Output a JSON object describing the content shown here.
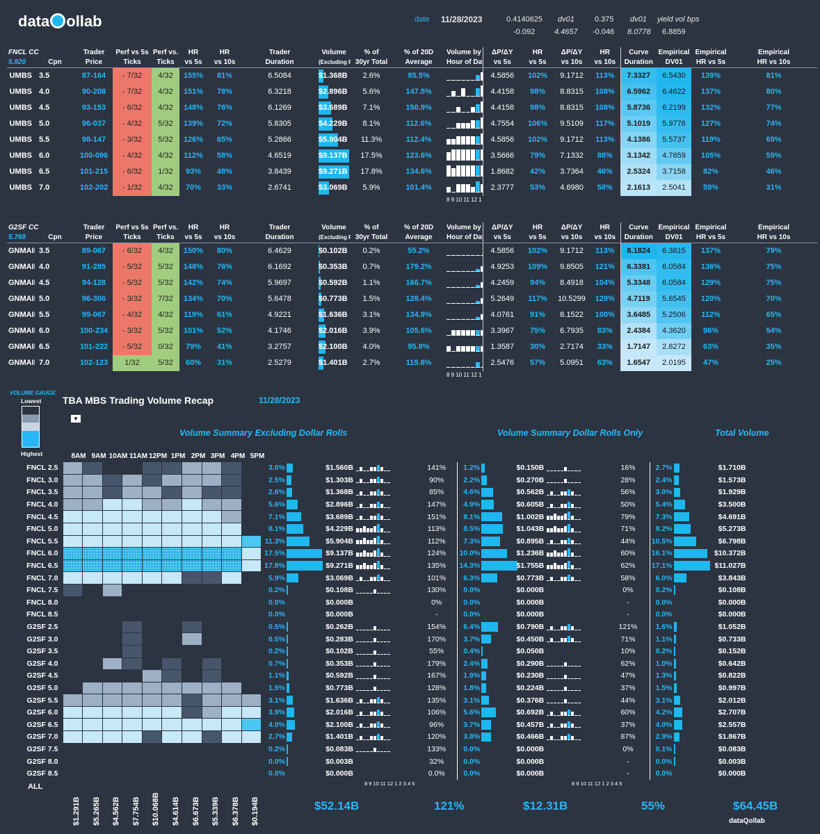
{
  "header": {
    "logo": "dataQollab",
    "date_label": "date",
    "date": "11/28/2023",
    "v1": "0.4140625",
    "v2": "-0.092",
    "dv01_label": "dv01",
    "dv01_a": "4.4657",
    "v3": "0.375",
    "v4": "-0.046",
    "dv01_label2": "dv01",
    "dv01_b": "8.0778",
    "yv_label": "yield vol bps",
    "yv": "6.8859"
  },
  "fncl": {
    "cc": "FNCL CC",
    "cc_val": "5.920",
    "cols": [
      "Cpn",
      "Trader Price",
      "Perf vs 5s Ticks",
      "Perf vs. 10s Ticks",
      "HR vs 5s",
      "HR vs 10s",
      "Trader Duration",
      "Volume (Excluding Rolls)",
      "% of 30yr Total",
      "% of 20D Average",
      "Volume by Hour of Day",
      "ΔP/ΔY vs 5s",
      "HR vs 5s",
      "ΔP/ΔY vs 10s",
      "HR vs 10s",
      "Curve Duration",
      "Empirical DV01",
      "Empirical HR vs 5s",
      "Empirical HR vs 10s"
    ],
    "rows": [
      [
        "UMBS",
        "3.5",
        "87-164",
        "- 7/32",
        "4/32",
        "155%",
        "81%",
        "6.5084",
        "$1.368B",
        "2.6%",
        "85.5%",
        "4.5856",
        "102%",
        "9.1712",
        "113%",
        "7.3327",
        "6.5430",
        "139%",
        "81%"
      ],
      [
        "UMBS",
        "4.0",
        "90-208",
        "- 7/32",
        "4/32",
        "151%",
        "78%",
        "6.3218",
        "$2.896B",
        "5.6%",
        "147.5%",
        "4.4158",
        "98%",
        "8.8315",
        "108%",
        "6.5962",
        "6.4622",
        "137%",
        "80%"
      ],
      [
        "UMBS",
        "4.5",
        "93-153",
        "- 6/32",
        "4/32",
        "148%",
        "76%",
        "6.1269",
        "$3.689B",
        "7.1%",
        "150.9%",
        "4.4158",
        "98%",
        "8.8315",
        "108%",
        "5.8736",
        "6.2199",
        "132%",
        "77%"
      ],
      [
        "UMBS",
        "5.0",
        "96-037",
        "- 4/32",
        "5/32",
        "139%",
        "72%",
        "5.8305",
        "$4.229B",
        "8.1%",
        "112.6%",
        "4.7554",
        "106%",
        "9.5109",
        "117%",
        "5.1019",
        "5.9776",
        "127%",
        "74%"
      ],
      [
        "UMBS",
        "5.5",
        "98-147",
        "- 3/32",
        "5/32",
        "126%",
        "65%",
        "5.2866",
        "$5.904B",
        "11.3%",
        "112.4%",
        "4.5856",
        "102%",
        "9.1712",
        "113%",
        "4.1386",
        "5.5737",
        "119%",
        "69%"
      ],
      [
        "UMBS",
        "6.0",
        "100-096",
        "- 4/32",
        "4/32",
        "112%",
        "58%",
        "4.6519",
        "$9.137B",
        "17.5%",
        "123.6%",
        "3.5666",
        "79%",
        "7.1332",
        "88%",
        "3.1342",
        "4.7659",
        "105%",
        "59%"
      ],
      [
        "UMBS",
        "6.5",
        "101-215",
        "- 6/32",
        "1/32",
        "93%",
        "48%",
        "3.8439",
        "$9.271B",
        "17.8%",
        "134.6%",
        "1.8682",
        "42%",
        "3.7364",
        "46%",
        "2.5324",
        "3.7158",
        "82%",
        "46%"
      ],
      [
        "UMBS",
        "7.0",
        "102-202",
        "- 1/32",
        "4/32",
        "70%",
        "33%",
        "2.6741",
        "$3.069B",
        "5.9%",
        "101.4%",
        "2.3777",
        "53%",
        "4.6980",
        "58%",
        "2.1613",
        "2.5041",
        "59%",
        "31%"
      ]
    ],
    "vol": [
      1.368,
      2.896,
      3.689,
      4.229,
      5.904,
      9.137,
      9.271,
      3.069
    ],
    "axis": "8 9 10 11 12 1 2 3 4 5"
  },
  "g2sf": {
    "cc": "G2SF CC",
    "cc_val": "5.768",
    "rows": [
      [
        "GNMAII",
        "3.5",
        "89-067",
        "- 6/32",
        "4/32",
        "150%",
        "80%",
        "6.4629",
        "$0.102B",
        "0.2%",
        "55.2%",
        "4.5856",
        "102%",
        "9.1712",
        "113%",
        "8.1824",
        "6.3815",
        "137%",
        "79%"
      ],
      [
        "GNMAII",
        "4.0",
        "91-285",
        "- 5/32",
        "5/32",
        "148%",
        "76%",
        "6.1692",
        "$0.353B",
        "0.7%",
        "179.2%",
        "4.9253",
        "109%",
        "9.8505",
        "121%",
        "6.3381",
        "6.0584",
        "136%",
        "75%"
      ],
      [
        "GNMAII",
        "4.5",
        "94-128",
        "- 5/32",
        "5/32",
        "142%",
        "74%",
        "5.9697",
        "$0.592B",
        "1.1%",
        "166.7%",
        "4.2459",
        "94%",
        "8.4918",
        "104%",
        "5.3348",
        "6.0584",
        "129%",
        "75%"
      ],
      [
        "GNMAII",
        "5.0",
        "96-306",
        "- 3/32",
        "7/32",
        "134%",
        "70%",
        "5.6478",
        "$0.773B",
        "1.5%",
        "128.4%",
        "5.2649",
        "117%",
        "10.5299",
        "129%",
        "4.7119",
        "5.6545",
        "120%",
        "70%"
      ],
      [
        "GNMAII",
        "5.5",
        "99-067",
        "- 4/32",
        "4/32",
        "119%",
        "61%",
        "4.9221",
        "$1.636B",
        "3.1%",
        "134.9%",
        "4.0761",
        "91%",
        "8.1522",
        "100%",
        "3.6485",
        "5.2506",
        "112%",
        "65%"
      ],
      [
        "GNMAII",
        "6.0",
        "100-234",
        "- 3/32",
        "5/32",
        "101%",
        "52%",
        "4.1746",
        "$2.016B",
        "3.9%",
        "105.6%",
        "3.3967",
        "75%",
        "6.7935",
        "83%",
        "2.4384",
        "4.3620",
        "96%",
        "54%"
      ],
      [
        "GNMAII",
        "6.5",
        "101-222",
        "- 5/32",
        "0/32",
        "79%",
        "41%",
        "3.2757",
        "$2.100B",
        "4.0%",
        "95.8%",
        "1.3587",
        "30%",
        "2.7174",
        "33%",
        "1.7147",
        "2.8272",
        "63%",
        "35%"
      ],
      [
        "GNMAII",
        "7.0",
        "102-123",
        "1/32",
        "5/32",
        "60%",
        "31%",
        "2.5279",
        "$1.401B",
        "2.7%",
        "119.8%",
        "2.5476",
        "57%",
        "5.0951",
        "63%",
        "1.6547",
        "2.0195",
        "47%",
        "25%"
      ]
    ],
    "vol": [
      0.102,
      0.353,
      0.592,
      0.773,
      1.636,
      2.016,
      2.1,
      1.401
    ]
  },
  "recap": {
    "gauge": "VOLUME GAUGE",
    "lowest": "Lowest",
    "highest": "Highest",
    "title": "TBA MBS Trading Volume Recap",
    "date": "11/28/2023",
    "sec1": "Volume Summary Excluding Dollar Rolls",
    "sec2": "Volume Summary Dollar Rolls Only",
    "sec3": "Total Volume",
    "h_pct": "% of 30y Volume",
    "h_tot": "Total Volume",
    "h_hour": "Volume by Hour",
    "h_avg": "% of 20d Average",
    "hours": [
      "8AM",
      "9AM",
      "10AM",
      "11AM",
      "12PM",
      "1PM",
      "2PM",
      "3PM",
      "4PM",
      "5PM"
    ],
    "rows": [
      [
        "FNCL 2.5",
        "3.0%",
        "$1.560B",
        "141%",
        "1.2%",
        "$0.150B",
        "16%",
        "2.7%",
        "$1.710B"
      ],
      [
        "FNCL 3.0",
        "2.5%",
        "$1.303B",
        "90%",
        "2.2%",
        "$0.270B",
        "28%",
        "2.4%",
        "$1.573B"
      ],
      [
        "FNCL 3.5",
        "2.6%",
        "$1.368B",
        "85%",
        "4.6%",
        "$0.562B",
        "56%",
        "3.0%",
        "$1.929B"
      ],
      [
        "FNCL 4.0",
        "5.6%",
        "$2.896B",
        "147%",
        "4.9%",
        "$0.605B",
        "50%",
        "5.4%",
        "$3.500B"
      ],
      [
        "FNCL 4.5",
        "7.1%",
        "$3.689B",
        "151%",
        "8.1%",
        "$1.002B",
        "79%",
        "7.3%",
        "$4.691B"
      ],
      [
        "FNCL 5.0",
        "8.1%",
        "$4.229B",
        "113%",
        "8.5%",
        "$1.043B",
        "71%",
        "8.2%",
        "$5.273B"
      ],
      [
        "FNCL 5.5",
        "11.3%",
        "$5.904B",
        "112%",
        "7.3%",
        "$0.895B",
        "44%",
        "10.5%",
        "$6.798B"
      ],
      [
        "FNCL 6.0",
        "17.5%",
        "$9.137B",
        "124%",
        "10.0%",
        "$1.236B",
        "60%",
        "16.1%",
        "$10.372B"
      ],
      [
        "FNCL 6.5",
        "17.8%",
        "$9.271B",
        "135%",
        "14.3%",
        "$1.755B",
        "62%",
        "17.1%",
        "$11.027B"
      ],
      [
        "FNCL 7.0",
        "5.9%",
        "$3.069B",
        "101%",
        "6.3%",
        "$0.773B",
        "58%",
        "6.0%",
        "$3.843B"
      ],
      [
        "FNCL 7.5",
        "0.2%",
        "$0.108B",
        "130%",
        "0.0%",
        "$0.000B",
        "0%",
        "0.2%",
        "$0.108B"
      ],
      [
        "FNCL 8.0",
        "0.0%",
        "$0.000B",
        "0%",
        "0.0%",
        "$0.000B",
        "-",
        "0.0%",
        "$0.000B"
      ],
      [
        "FNCL 8.5",
        "0.0%",
        "$0.000B",
        "-",
        "0.0%",
        "$0.000B",
        "-",
        "0.0%",
        "$0.000B"
      ],
      [
        "G2SF 2.5",
        "0.5%",
        "$0.262B",
        "154%",
        "6.4%",
        "$0.790B",
        "121%",
        "1.6%",
        "$1.052B"
      ],
      [
        "G2SF 3.0",
        "0.5%",
        "$0.283B",
        "170%",
        "3.7%",
        "$0.450B",
        "71%",
        "1.1%",
        "$0.733B"
      ],
      [
        "G2SF 3.5",
        "0.2%",
        "$0.102B",
        "55%",
        "0.4%",
        "$0.050B",
        "10%",
        "0.2%",
        "$0.152B"
      ],
      [
        "G2SF 4.0",
        "0.7%",
        "$0.353B",
        "179%",
        "2.4%",
        "$0.290B",
        "62%",
        "1.0%",
        "$0.642B"
      ],
      [
        "G2SF 4.5",
        "1.1%",
        "$0.592B",
        "167%",
        "1.9%",
        "$0.230B",
        "47%",
        "1.3%",
        "$0.822B"
      ],
      [
        "G2SF 5.0",
        "1.5%",
        "$0.773B",
        "128%",
        "1.8%",
        "$0.224B",
        "37%",
        "1.5%",
        "$0.997B"
      ],
      [
        "G2SF 5.5",
        "3.1%",
        "$1.636B",
        "135%",
        "3.1%",
        "$0.376B",
        "44%",
        "3.1%",
        "$2.012B"
      ],
      [
        "G2SF 6.0",
        "3.9%",
        "$2.016B",
        "106%",
        "5.6%",
        "$0.692B",
        "60%",
        "4.2%",
        "$2.707B"
      ],
      [
        "G2SF 6.5",
        "4.0%",
        "$2.100B",
        "96%",
        "3.7%",
        "$0.457B",
        "37%",
        "4.0%",
        "$2.557B"
      ],
      [
        "G2SF 7.0",
        "2.7%",
        "$1.401B",
        "120%",
        "3.8%",
        "$0.466B",
        "87%",
        "2.9%",
        "$1.867B"
      ],
      [
        "G2SF 7.5",
        "0.2%",
        "$0.083B",
        "133%",
        "0.0%",
        "$0.000B",
        "0%",
        "0.1%",
        "$0.083B"
      ],
      [
        "G2SF 8.0",
        "0.0%",
        "$0.003B",
        "32%",
        "0.0%",
        "$0.000B",
        "-",
        "0.0%",
        "$0.003B"
      ],
      [
        "G2SF 8.5",
        "0.0%",
        "$0.000B",
        "0.0%",
        "0.0%",
        "$0.000B",
        "-",
        "0.0%",
        "$0.000B"
      ]
    ],
    "all": "ALL",
    "col_totals": [
      "$1.291B",
      "$5.265B",
      "$4.562B",
      "$7.754B",
      "$10.068B",
      "$4.614B",
      "$6.673B",
      "$5.339B",
      "$6.378B",
      "$0.194B"
    ],
    "total1": "$52.14B",
    "avg1": "121%",
    "total2": "$12.31B",
    "avg2": "55%",
    "total3": "$64.45B",
    "footer_logo": "dataQollab"
  },
  "colors": {
    "bg": "#2c3441",
    "accent": "#29b6f6",
    "bar": "#1eb7ee",
    "red": "#f4a79a",
    "green": "#a8d98a"
  }
}
